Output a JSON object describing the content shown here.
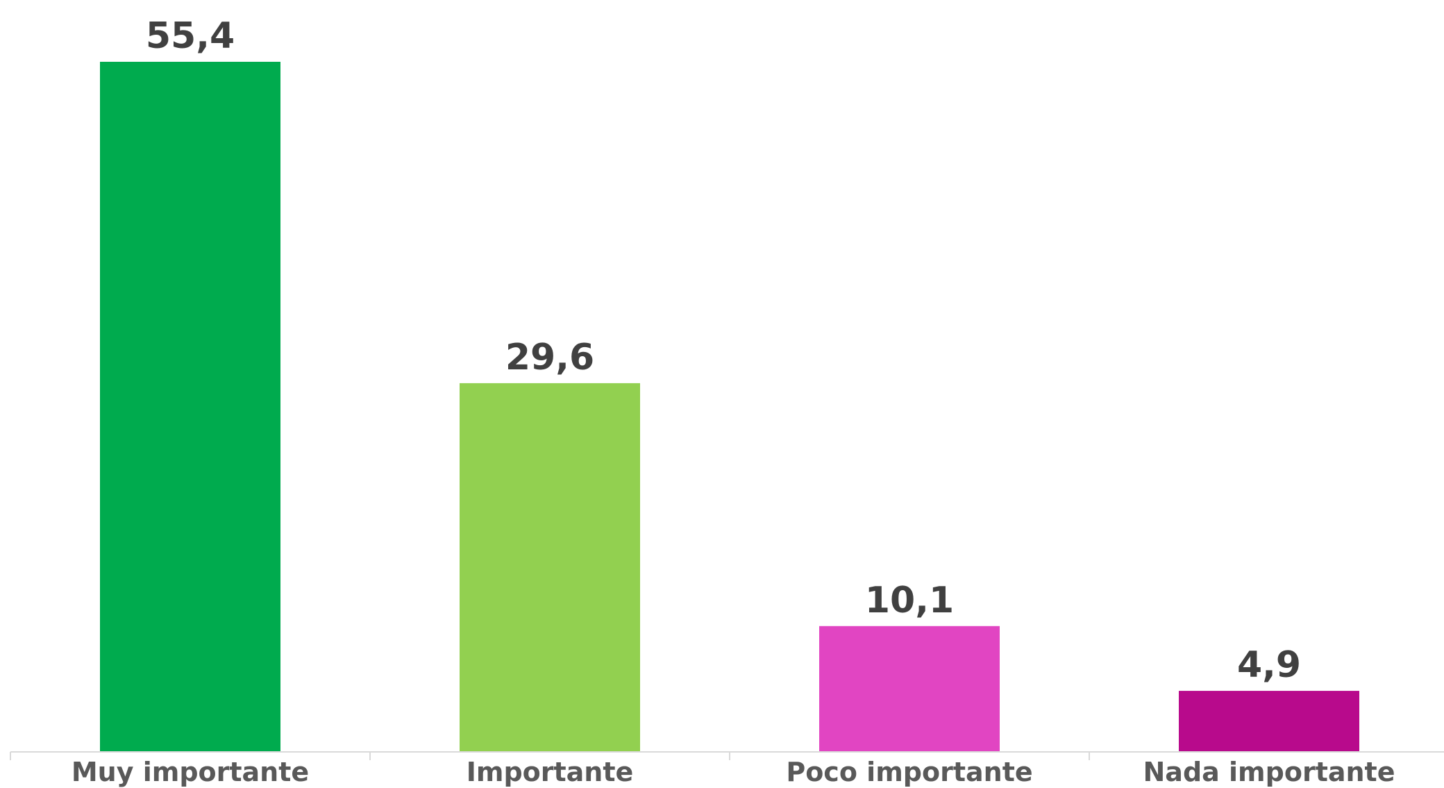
{
  "chart_data": {
    "type": "bar",
    "title": "",
    "xlabel": "",
    "ylabel": "",
    "categories": [
      "Muy importante",
      "Importante",
      "Poco importante",
      "Nada importante"
    ],
    "values": [
      55.4,
      29.6,
      10.1,
      4.9
    ],
    "value_labels": [
      "55,4",
      "29,6",
      "10,1",
      "4,9"
    ],
    "colors": [
      "#00AB4E",
      "#92D050",
      "#E145C2",
      "#B80A8C"
    ],
    "ylim": [
      0,
      60
    ],
    "grid": false,
    "legend": "none"
  }
}
